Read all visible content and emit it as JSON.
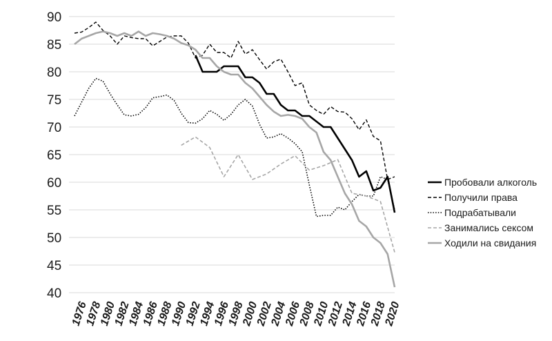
{
  "chart_data": {
    "type": "line",
    "title": "",
    "xlabel": "",
    "ylabel": "",
    "xlim": [
      1976,
      2021
    ],
    "ylim": [
      40,
      90
    ],
    "grid": true,
    "legend_position": "right",
    "yticks": [
      "40",
      "45",
      "50",
      "55",
      "60",
      "65",
      "70",
      "75",
      "80",
      "85",
      "90"
    ],
    "xticks": [
      "1976",
      "1978",
      "1980",
      "1982",
      "1984",
      "1986",
      "1988",
      "1990",
      "1992",
      "1994",
      "1996",
      "1998",
      "2000",
      "2002",
      "2004",
      "2006",
      "2008",
      "2010",
      "2012",
      "2014",
      "2016",
      "2018",
      "2020"
    ],
    "series": [
      {
        "name": "Пробовали алкоголь",
        "style": "solid-black",
        "color": "#000000",
        "points": [
          [
            1993,
            83
          ],
          [
            1994,
            80
          ],
          [
            1995,
            80
          ],
          [
            1996,
            80
          ],
          [
            1997,
            81
          ],
          [
            1998,
            81
          ],
          [
            1999,
            81
          ],
          [
            2000,
            79
          ],
          [
            2001,
            79
          ],
          [
            2002,
            78
          ],
          [
            2003,
            76
          ],
          [
            2004,
            76
          ],
          [
            2005,
            74
          ],
          [
            2006,
            73
          ],
          [
            2007,
            73
          ],
          [
            2008,
            72
          ],
          [
            2009,
            72
          ],
          [
            2010,
            71
          ],
          [
            2011,
            70
          ],
          [
            2012,
            70
          ],
          [
            2013,
            68
          ],
          [
            2014,
            66
          ],
          [
            2015,
            64
          ],
          [
            2016,
            61
          ],
          [
            2017,
            62
          ],
          [
            2018,
            58.5
          ],
          [
            2019,
            59
          ],
          [
            2020,
            61
          ],
          [
            2021,
            54.5
          ]
        ]
      },
      {
        "name": "Получили права",
        "style": "dashed-black",
        "color": "#000000",
        "points": [
          [
            1976,
            87
          ],
          [
            1977,
            87.2
          ],
          [
            1978,
            88
          ],
          [
            1979,
            89
          ],
          [
            1980,
            87.5
          ],
          [
            1981,
            86.5
          ],
          [
            1982,
            85
          ],
          [
            1983,
            86.5
          ],
          [
            1984,
            86.2
          ],
          [
            1985,
            86
          ],
          [
            1986,
            86
          ],
          [
            1987,
            84.7
          ],
          [
            1988,
            85.5
          ],
          [
            1989,
            86.3
          ],
          [
            1990,
            86.5
          ],
          [
            1991,
            86.5
          ],
          [
            1992,
            85.2
          ],
          [
            1993,
            82.5
          ],
          [
            1994,
            83
          ],
          [
            1995,
            85
          ],
          [
            1996,
            83.5
          ],
          [
            1997,
            83.5
          ],
          [
            1998,
            82.5
          ],
          [
            1999,
            85.5
          ],
          [
            2000,
            83.2
          ],
          [
            2001,
            84
          ],
          [
            2002,
            82.2
          ],
          [
            2003,
            80.5
          ],
          [
            2004,
            81.8
          ],
          [
            2005,
            82.3
          ],
          [
            2006,
            80
          ],
          [
            2007,
            77.5
          ],
          [
            2008,
            78
          ],
          [
            2009,
            74
          ],
          [
            2010,
            73
          ],
          [
            2011,
            72.3
          ],
          [
            2012,
            73.7
          ],
          [
            2013,
            72.8
          ],
          [
            2014,
            72.7
          ],
          [
            2015,
            71.5
          ],
          [
            2016,
            69.5
          ],
          [
            2017,
            71.3
          ],
          [
            2018,
            68.3
          ],
          [
            2019,
            67.5
          ],
          [
            2020,
            60.5
          ],
          [
            2021,
            61
          ]
        ]
      },
      {
        "name": "Подрабатывали",
        "style": "dotted-black",
        "color": "#000000",
        "points": [
          [
            1976,
            72
          ],
          [
            1977,
            74.5
          ],
          [
            1978,
            77
          ],
          [
            1979,
            78.8
          ],
          [
            1980,
            78.3
          ],
          [
            1981,
            76
          ],
          [
            1982,
            74
          ],
          [
            1983,
            72.2
          ],
          [
            1984,
            72
          ],
          [
            1985,
            72.3
          ],
          [
            1986,
            73.5
          ],
          [
            1987,
            75.3
          ],
          [
            1988,
            75.5
          ],
          [
            1989,
            75.8
          ],
          [
            1990,
            74.8
          ],
          [
            1991,
            72.5
          ],
          [
            1992,
            70.8
          ],
          [
            1993,
            70.7
          ],
          [
            1994,
            71.5
          ],
          [
            1995,
            73
          ],
          [
            1996,
            72.3
          ],
          [
            1997,
            71.2
          ],
          [
            1998,
            72.3
          ],
          [
            1999,
            74
          ],
          [
            2000,
            75
          ],
          [
            2001,
            73.8
          ],
          [
            2002,
            70.5
          ],
          [
            2003,
            68
          ],
          [
            2004,
            68.2
          ],
          [
            2005,
            68.8
          ],
          [
            2006,
            68
          ],
          [
            2007,
            67
          ],
          [
            2008,
            65.5
          ],
          [
            2009,
            59.5
          ],
          [
            2010,
            53.8
          ],
          [
            2011,
            54
          ],
          [
            2012,
            54
          ],
          [
            2013,
            55.5
          ],
          [
            2014,
            55
          ],
          [
            2015,
            56.5
          ],
          [
            2016,
            57.8
          ],
          [
            2017,
            57.5
          ],
          [
            2018,
            57.5
          ],
          [
            2019,
            61
          ],
          [
            2020,
            60.5
          ],
          [
            2021,
            55
          ]
        ]
      },
      {
        "name": "Занимались сексом",
        "style": "dashed-gray",
        "color": "#a6a6a6",
        "points": [
          [
            1991,
            66.7
          ],
          [
            1993,
            68.2
          ],
          [
            1995,
            66.3
          ],
          [
            1997,
            61
          ],
          [
            1999,
            65
          ],
          [
            2001,
            60.5
          ],
          [
            2003,
            61.5
          ],
          [
            2005,
            63.3
          ],
          [
            2007,
            64.8
          ],
          [
            2009,
            62.2
          ],
          [
            2011,
            63
          ],
          [
            2013,
            64.1
          ],
          [
            2015,
            58
          ],
          [
            2017,
            57.5
          ],
          [
            2019,
            56.5
          ],
          [
            2021,
            47.3
          ]
        ]
      },
      {
        "name": "Ходили на свидания",
        "style": "solid-gray",
        "color": "#a6a6a6",
        "points": [
          [
            1976,
            85
          ],
          [
            1977,
            86
          ],
          [
            1978,
            86.5
          ],
          [
            1979,
            87
          ],
          [
            1980,
            87.3
          ],
          [
            1981,
            87
          ],
          [
            1982,
            86.5
          ],
          [
            1983,
            87
          ],
          [
            1984,
            86.5
          ],
          [
            1985,
            87.3
          ],
          [
            1986,
            86.5
          ],
          [
            1987,
            87
          ],
          [
            1988,
            86.8
          ],
          [
            1989,
            86.5
          ],
          [
            1990,
            86
          ],
          [
            1991,
            85.2
          ],
          [
            1992,
            84.8
          ],
          [
            1993,
            84
          ],
          [
            1994,
            82.5
          ],
          [
            1995,
            82.5
          ],
          [
            1996,
            81
          ],
          [
            1997,
            80
          ],
          [
            1998,
            79.5
          ],
          [
            1999,
            79.5
          ],
          [
            2000,
            78
          ],
          [
            2001,
            77
          ],
          [
            2002,
            75.5
          ],
          [
            2003,
            74
          ],
          [
            2004,
            72.8
          ],
          [
            2005,
            72
          ],
          [
            2006,
            72.2
          ],
          [
            2007,
            72
          ],
          [
            2008,
            71.5
          ],
          [
            2009,
            70
          ],
          [
            2010,
            69
          ],
          [
            2011,
            65.5
          ],
          [
            2012,
            64
          ],
          [
            2013,
            61
          ],
          [
            2014,
            58
          ],
          [
            2015,
            56
          ],
          [
            2016,
            53
          ],
          [
            2017,
            52
          ],
          [
            2018,
            50
          ],
          [
            2019,
            49
          ],
          [
            2020,
            47
          ],
          [
            2021,
            41
          ]
        ]
      }
    ]
  }
}
